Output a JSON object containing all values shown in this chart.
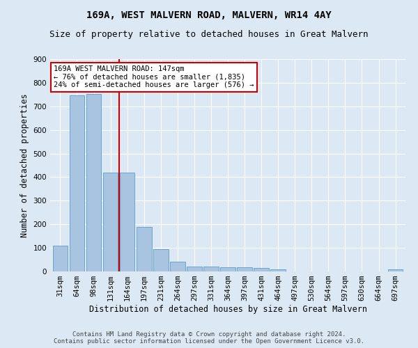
{
  "title": "169A, WEST MALVERN ROAD, MALVERN, WR14 4AY",
  "subtitle": "Size of property relative to detached houses in Great Malvern",
  "xlabel": "Distribution of detached houses by size in Great Malvern",
  "ylabel": "Number of detached properties",
  "categories": [
    "31sqm",
    "64sqm",
    "98sqm",
    "131sqm",
    "164sqm",
    "197sqm",
    "231sqm",
    "264sqm",
    "297sqm",
    "331sqm",
    "364sqm",
    "397sqm",
    "431sqm",
    "464sqm",
    "497sqm",
    "530sqm",
    "564sqm",
    "597sqm",
    "630sqm",
    "664sqm",
    "697sqm"
  ],
  "values": [
    110,
    748,
    752,
    420,
    420,
    190,
    95,
    40,
    20,
    20,
    17,
    17,
    15,
    8,
    0,
    0,
    0,
    0,
    0,
    0,
    8
  ],
  "bar_color": "#a8c4e0",
  "bar_edge_color": "#5a9dc8",
  "vline_x": 3.5,
  "vline_color": "#cc0000",
  "annotation_text": "169A WEST MALVERN ROAD: 147sqm\n← 76% of detached houses are smaller (1,835)\n24% of semi-detached houses are larger (576) →",
  "annotation_box_color": "#ffffff",
  "annotation_box_edge": "#cc0000",
  "ylim": [
    0,
    900
  ],
  "yticks": [
    0,
    100,
    200,
    300,
    400,
    500,
    600,
    700,
    800,
    900
  ],
  "bg_color": "#dce9f5",
  "plot_bg_color": "#dce9f5",
  "grid_color": "#ffffff",
  "footer": "Contains HM Land Registry data © Crown copyright and database right 2024.\nContains public sector information licensed under the Open Government Licence v3.0.",
  "title_fontsize": 10,
  "subtitle_fontsize": 9,
  "xlabel_fontsize": 8.5,
  "ylabel_fontsize": 8.5,
  "tick_fontsize": 7.5,
  "footer_fontsize": 6.5,
  "annot_fontsize": 7.5
}
